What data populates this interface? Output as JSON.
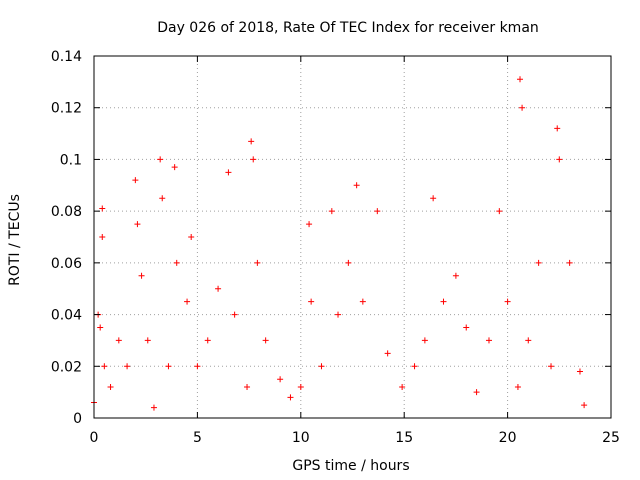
{
  "chart_data": {
    "type": "scatter",
    "title": "Day 026 of 2018, Rate Of TEC Index for receiver kman",
    "xlabel": "GPS time / hours",
    "ylabel": "ROTI / TECUs",
    "xlim": [
      0,
      25
    ],
    "ylim": [
      0,
      0.14
    ],
    "xticks": [
      0,
      5,
      10,
      15,
      20,
      25
    ],
    "yticks": [
      0,
      0.02,
      0.04,
      0.06,
      0.08,
      0.1,
      0.12,
      0.14
    ],
    "xtick_labels": [
      "0",
      "5",
      "10",
      "15",
      "20",
      "25"
    ],
    "ytick_labels": [
      "0",
      "0.02",
      "0.04",
      "0.06",
      "0.08",
      "0.1",
      "0.12",
      "0.14"
    ],
    "grid": true,
    "marker": "+",
    "series": [
      {
        "name": "ROTI",
        "color": "#ff0000",
        "sample_points": [
          [
            0.0,
            0.006
          ],
          [
            0.2,
            0.04
          ],
          [
            0.3,
            0.035
          ],
          [
            0.4,
            0.081
          ],
          [
            0.4,
            0.07
          ],
          [
            0.5,
            0.02
          ],
          [
            0.8,
            0.012
          ],
          [
            1.2,
            0.03
          ],
          [
            1.6,
            0.02
          ],
          [
            2.0,
            0.092
          ],
          [
            2.1,
            0.075
          ],
          [
            2.3,
            0.055
          ],
          [
            2.6,
            0.03
          ],
          [
            2.9,
            0.004
          ],
          [
            3.2,
            0.1
          ],
          [
            3.3,
            0.085
          ],
          [
            3.6,
            0.02
          ],
          [
            3.9,
            0.097
          ],
          [
            4.0,
            0.06
          ],
          [
            4.5,
            0.045
          ],
          [
            4.7,
            0.07
          ],
          [
            5.0,
            0.02
          ],
          [
            5.5,
            0.03
          ],
          [
            6.0,
            0.05
          ],
          [
            6.5,
            0.095
          ],
          [
            6.8,
            0.04
          ],
          [
            7.4,
            0.012
          ],
          [
            7.6,
            0.107
          ],
          [
            7.7,
            0.1
          ],
          [
            7.9,
            0.06
          ],
          [
            8.3,
            0.03
          ],
          [
            9.0,
            0.015
          ],
          [
            9.5,
            0.008
          ],
          [
            10.0,
            0.012
          ],
          [
            10.4,
            0.075
          ],
          [
            10.5,
            0.045
          ],
          [
            11.0,
            0.02
          ],
          [
            11.5,
            0.08
          ],
          [
            11.8,
            0.04
          ],
          [
            12.3,
            0.06
          ],
          [
            12.7,
            0.09
          ],
          [
            13.0,
            0.045
          ],
          [
            13.7,
            0.08
          ],
          [
            14.2,
            0.025
          ],
          [
            14.9,
            0.012
          ],
          [
            15.5,
            0.02
          ],
          [
            16.0,
            0.03
          ],
          [
            16.4,
            0.085
          ],
          [
            16.9,
            0.045
          ],
          [
            17.5,
            0.055
          ],
          [
            18.0,
            0.035
          ],
          [
            18.5,
            0.01
          ],
          [
            19.1,
            0.03
          ],
          [
            19.6,
            0.08
          ],
          [
            20.0,
            0.045
          ],
          [
            20.5,
            0.012
          ],
          [
            20.6,
            0.131
          ],
          [
            20.7,
            0.12
          ],
          [
            21.0,
            0.03
          ],
          [
            21.5,
            0.06
          ],
          [
            22.1,
            0.02
          ],
          [
            22.4,
            0.112
          ],
          [
            22.5,
            0.1
          ],
          [
            23.0,
            0.06
          ],
          [
            23.5,
            0.018
          ],
          [
            23.7,
            0.005
          ]
        ]
      }
    ]
  }
}
